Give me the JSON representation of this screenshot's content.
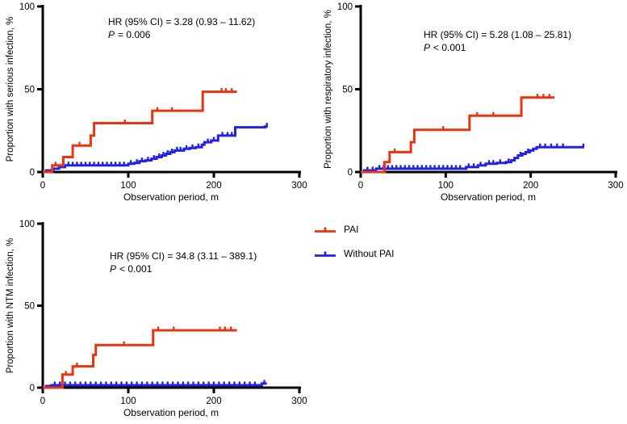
{
  "page": {
    "background": "#FFFFFF"
  },
  "colors": {
    "pai": "#E8350F",
    "without_pai": "#2222E2",
    "axis": "#000000"
  },
  "legend": {
    "position": "right-middle",
    "items": [
      {
        "label": "PAI",
        "color": "#E8350F"
      },
      {
        "label": "Without PAI",
        "color": "#2222E2"
      }
    ]
  },
  "chart_data": [
    {
      "id": "serious",
      "type": "line",
      "subtype": "cumulative-incidence-step",
      "ylabel": "Proportion with serious infection, %",
      "xlabel": "Observation period, m",
      "annotation": {
        "hr": "HR (95% CI) = 3.28 (0.93 – 11.62)",
        "p_symbol": "P",
        "p_text": "= 0.006"
      },
      "xlim": [
        0,
        300
      ],
      "ylim": [
        0,
        100
      ],
      "xticks": [
        0,
        100,
        200,
        300
      ],
      "yticks": [
        0,
        50,
        100
      ],
      "grid": false,
      "series": [
        {
          "name": "PAI",
          "color_key": "pai",
          "end": 227,
          "steps": [
            [
              0,
              0
            ],
            [
              11,
              4
            ],
            [
              24,
              9
            ],
            [
              35,
              16
            ],
            [
              56,
              22
            ],
            [
              60,
              29.5
            ],
            [
              128,
              37
            ],
            [
              187,
              48.5
            ]
          ],
          "censors": [
            [
              15,
              4
            ],
            [
              43,
              16
            ],
            [
              96,
              29.5
            ],
            [
              134,
              37
            ],
            [
              151,
              37
            ],
            [
              209,
              48.5
            ],
            [
              214,
              48.5
            ],
            [
              221,
              48.5
            ]
          ]
        },
        {
          "name": "Without PAI",
          "color_key": "without_pai",
          "end": 263,
          "steps": [
            [
              0,
              0
            ],
            [
              4,
              1
            ],
            [
              12,
              2
            ],
            [
              19,
              3
            ],
            [
              26,
              4
            ],
            [
              100,
              5
            ],
            [
              107,
              5.5
            ],
            [
              113,
              6.5
            ],
            [
              120,
              7
            ],
            [
              127,
              8
            ],
            [
              133,
              9
            ],
            [
              139,
              10
            ],
            [
              144,
              11
            ],
            [
              149,
              12
            ],
            [
              154,
              13
            ],
            [
              165,
              14
            ],
            [
              172,
              14.5
            ],
            [
              179,
              15
            ],
            [
              186,
              16.5
            ],
            [
              189,
              18
            ],
            [
              197,
              19
            ],
            [
              205,
              22
            ],
            [
              225,
              27
            ],
            [
              260,
              27.5
            ]
          ],
          "censors": [
            [
              30,
              4
            ],
            [
              35,
              4
            ],
            [
              40,
              4
            ],
            [
              45,
              4
            ],
            [
              50,
              4
            ],
            [
              55,
              4
            ],
            [
              60,
              4
            ],
            [
              65,
              4
            ],
            [
              70,
              4
            ],
            [
              75,
              4
            ],
            [
              80,
              4
            ],
            [
              85,
              4
            ],
            [
              90,
              4
            ],
            [
              95,
              4
            ],
            [
              103,
              5
            ],
            [
              110,
              5.5
            ],
            [
              116,
              6.5
            ],
            [
              123,
              7
            ],
            [
              130,
              8
            ],
            [
              136,
              9
            ],
            [
              141,
              10
            ],
            [
              146,
              11
            ],
            [
              151,
              12
            ],
            [
              157,
              13
            ],
            [
              161,
              13
            ],
            [
              168,
              14
            ],
            [
              175,
              14.5
            ],
            [
              182,
              15
            ],
            [
              193,
              18
            ],
            [
              200,
              19
            ],
            [
              210,
              22
            ],
            [
              216,
              22
            ],
            [
              221,
              22
            ],
            [
              262,
              27.5
            ]
          ]
        }
      ]
    },
    {
      "id": "respiratory",
      "type": "line",
      "subtype": "cumulative-incidence-step",
      "ylabel": "Proportion with respiratory infection, %",
      "xlabel": "Observation period, m",
      "annotation": {
        "hr": "HR (95% CI) = 5.28 (1.08 – 25.81)",
        "p_symbol": "P",
        "p_text": "< 0.001"
      },
      "xlim": [
        0,
        300
      ],
      "ylim": [
        0,
        100
      ],
      "xticks": [
        0,
        100,
        200,
        300
      ],
      "yticks": [
        0,
        50,
        100
      ],
      "grid": false,
      "series": [
        {
          "name": "PAI",
          "color_key": "pai",
          "end": 228,
          "steps": [
            [
              0,
              0
            ],
            [
              28,
              6
            ],
            [
              34,
              12
            ],
            [
              59,
              18
            ],
            [
              63,
              25.5
            ],
            [
              128,
              34
            ],
            [
              189,
              45
            ]
          ],
          "censors": [
            [
              40,
              12
            ],
            [
              97,
              25.5
            ],
            [
              137,
              34
            ],
            [
              156,
              34
            ],
            [
              208,
              45
            ],
            [
              215,
              45
            ],
            [
              222,
              45
            ]
          ]
        },
        {
          "name": "Without PAI",
          "color_key": "without_pai",
          "end": 263,
          "steps": [
            [
              0,
              0
            ],
            [
              4,
              1
            ],
            [
              18,
              2
            ],
            [
              124,
              3
            ],
            [
              138,
              4
            ],
            [
              147,
              5
            ],
            [
              160,
              5.5
            ],
            [
              171,
              6
            ],
            [
              177,
              7
            ],
            [
              181,
              8.5
            ],
            [
              185,
              10
            ],
            [
              190,
              11
            ],
            [
              194,
              12
            ],
            [
              199,
              13
            ],
            [
              203,
              14
            ],
            [
              207,
              15
            ]
          ],
          "censors": [
            [
              8,
              1
            ],
            [
              14,
              1
            ],
            [
              22,
              2
            ],
            [
              27,
              2
            ],
            [
              32,
              2
            ],
            [
              37,
              2
            ],
            [
              42,
              2
            ],
            [
              47,
              2
            ],
            [
              52,
              2
            ],
            [
              57,
              2
            ],
            [
              62,
              2
            ],
            [
              67,
              2
            ],
            [
              72,
              2
            ],
            [
              77,
              2
            ],
            [
              82,
              2
            ],
            [
              87,
              2
            ],
            [
              92,
              2
            ],
            [
              97,
              2
            ],
            [
              102,
              2
            ],
            [
              107,
              2
            ],
            [
              112,
              2
            ],
            [
              117,
              2
            ],
            [
              127,
              3
            ],
            [
              133,
              3
            ],
            [
              141,
              4
            ],
            [
              151,
              5
            ],
            [
              156,
              5
            ],
            [
              164,
              5.5
            ],
            [
              174,
              6
            ],
            [
              188,
              10
            ],
            [
              197,
              12
            ],
            [
              211,
              15
            ],
            [
              217,
              15
            ],
            [
              224,
              15
            ],
            [
              231,
              15
            ],
            [
              238,
              15
            ],
            [
              262,
              15
            ]
          ]
        }
      ]
    },
    {
      "id": "ntm",
      "type": "line",
      "subtype": "cumulative-incidence-step",
      "ylabel": "Proportion with NTM infection, %",
      "xlabel": "Observation period, m",
      "annotation": {
        "hr": "HR (95% CI) = 34.8 (3.11 – 389.1)",
        "p_symbol": "P",
        "p_text": "< 0.001"
      },
      "xlim": [
        0,
        300
      ],
      "ylim": [
        0,
        100
      ],
      "xticks": [
        0,
        100,
        200,
        300
      ],
      "yticks": [
        0,
        50,
        100
      ],
      "grid": false,
      "series": [
        {
          "name": "PAI",
          "color_key": "pai",
          "end": 227,
          "steps": [
            [
              0,
              0
            ],
            [
              23,
              8
            ],
            [
              35,
              13
            ],
            [
              59,
              20
            ],
            [
              62,
              26
            ],
            [
              129,
              35
            ]
          ],
          "censors": [
            [
              27,
              8
            ],
            [
              40,
              13
            ],
            [
              95,
              26
            ],
            [
              135,
              35
            ],
            [
              153,
              35
            ],
            [
              207,
              35
            ],
            [
              213,
              35
            ],
            [
              220,
              35
            ]
          ]
        },
        {
          "name": "Without PAI",
          "color_key": "without_pai",
          "end": 262,
          "steps": [
            [
              0,
              0
            ],
            [
              4,
              1
            ],
            [
              10,
              1.5
            ],
            [
              256,
              2.5
            ]
          ],
          "censors": [
            [
              14,
              1.5
            ],
            [
              20,
              1.5
            ],
            [
              26,
              1.5
            ],
            [
              32,
              1.5
            ],
            [
              38,
              1.5
            ],
            [
              44,
              1.5
            ],
            [
              50,
              1.5
            ],
            [
              56,
              1.5
            ],
            [
              62,
              1.5
            ],
            [
              68,
              1.5
            ],
            [
              74,
              1.5
            ],
            [
              80,
              1.5
            ],
            [
              86,
              1.5
            ],
            [
              92,
              1.5
            ],
            [
              98,
              1.5
            ],
            [
              104,
              1.5
            ],
            [
              110,
              1.5
            ],
            [
              116,
              1.5
            ],
            [
              122,
              1.5
            ],
            [
              128,
              1.5
            ],
            [
              134,
              1.5
            ],
            [
              140,
              1.5
            ],
            [
              146,
              1.5
            ],
            [
              152,
              1.5
            ],
            [
              158,
              1.5
            ],
            [
              164,
              1.5
            ],
            [
              170,
              1.5
            ],
            [
              176,
              1.5
            ],
            [
              182,
              1.5
            ],
            [
              188,
              1.5
            ],
            [
              194,
              1.5
            ],
            [
              200,
              1.5
            ],
            [
              206,
              1.5
            ],
            [
              212,
              1.5
            ],
            [
              218,
              1.5
            ],
            [
              224,
              1.5
            ],
            [
              230,
              1.5
            ],
            [
              236,
              1.5
            ],
            [
              242,
              1.5
            ],
            [
              248,
              1.5
            ],
            [
              259,
              2.5
            ]
          ]
        }
      ]
    }
  ]
}
